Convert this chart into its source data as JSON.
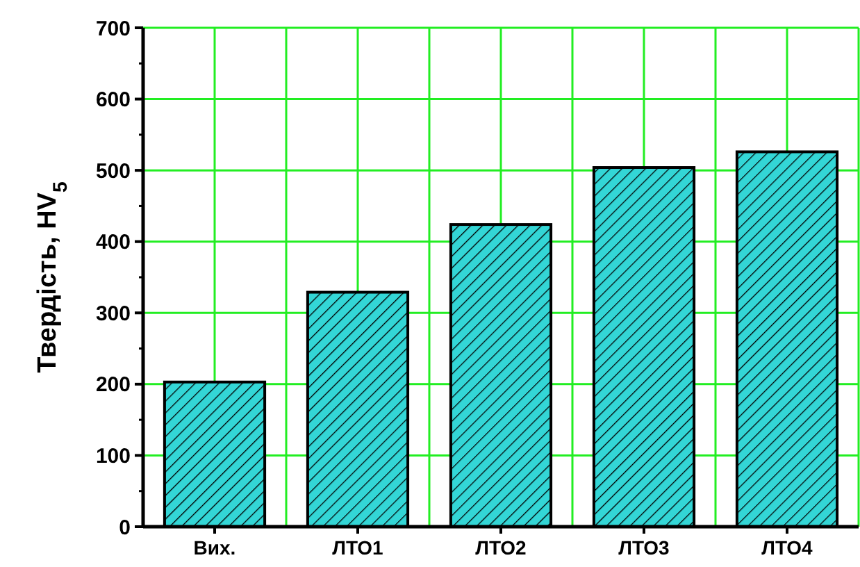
{
  "chart_data": {
    "type": "bar",
    "ylabel": "Твердість, HV$_{5}$",
    "categories": [
      "Вих.",
      "ЛТО1",
      "ЛТО2",
      "ЛТО3",
      "ЛТО4"
    ],
    "values": [
      203,
      329,
      424,
      504,
      526
    ],
    "color": "#33d6d6",
    "ylim": [
      0,
      700
    ],
    "yticks": [
      0,
      100,
      200,
      300,
      400,
      500,
      600,
      700
    ],
    "grid": true
  }
}
